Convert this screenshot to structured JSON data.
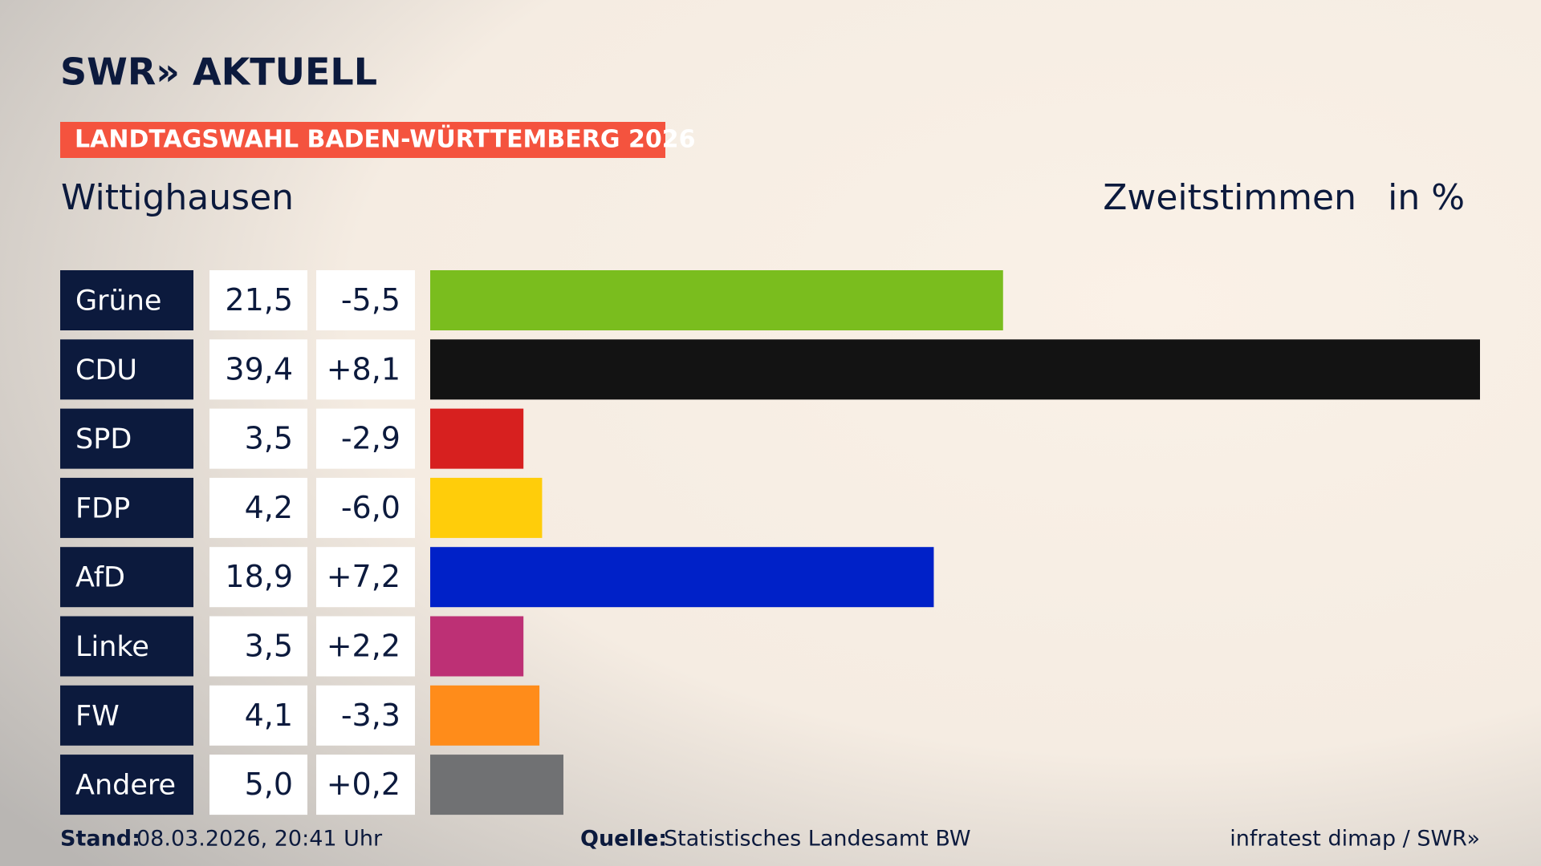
{
  "chart_data": {
    "type": "bar",
    "logo": "SWR» AKTUELL",
    "banner": "LANDTAGSWAHL BADEN-WÜRTTEMBERG 2026",
    "title": "Wittighausen",
    "subtitle": "Zweitstimmen",
    "unit": "in %",
    "categories": [
      "Grüne",
      "CDU",
      "SPD",
      "FDP",
      "AfD",
      "Linke",
      "FW",
      "Andere"
    ],
    "values": [
      21.5,
      39.4,
      3.5,
      4.2,
      18.9,
      3.5,
      4.1,
      5.0
    ],
    "value_labels": [
      "21,5",
      "39,4",
      "3,5",
      "4,2",
      "18,9",
      "3,5",
      "4,1",
      "5,0"
    ],
    "changes": [
      "-5,5",
      "+8,1",
      "-2,9",
      "-6,0",
      "+7,2",
      "+2,2",
      "-3,3",
      "+0,2"
    ],
    "colors": [
      "#7abd1e",
      "#131313",
      "#d7201f",
      "#ffcd0a",
      "#0021c8",
      "#bd3075",
      "#ff8c1a",
      "#707173"
    ],
    "footer": {
      "stand_label": "Stand:",
      "stand": "08.03.2026, 20:41 Uhr",
      "source_label": "Quelle:",
      "source": "Statistisches Landesamt BW",
      "credit": "infratest dimap / SWR»"
    }
  }
}
